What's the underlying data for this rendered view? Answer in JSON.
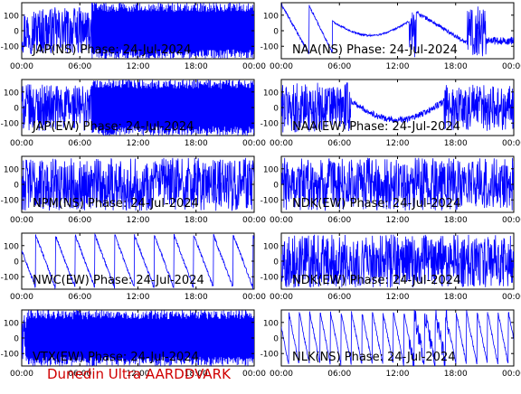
{
  "footer": "Dunedin Ultra AARDDVARK",
  "chart_data": [
    {
      "type": "line",
      "title": "JAP(NS) Phase: 24-Jul-2024",
      "pattern": "dense_high",
      "x_ticks": [
        "00:00",
        "06:00",
        "12:00",
        "18:00",
        "00:00"
      ],
      "y_ticks": [
        "100",
        "0",
        "-100"
      ],
      "ylim": [
        -180,
        180
      ],
      "grid": false,
      "series_color": "#0000ff"
    },
    {
      "type": "line",
      "title": "NAA(NS) Phase: 24-Jul-2024",
      "pattern": "naa_ns",
      "x_ticks": [
        "00:00",
        "06:00",
        "12:00",
        "18:00",
        "00:00"
      ],
      "y_ticks": [
        "100",
        "0",
        "-100"
      ],
      "ylim": [
        -180,
        180
      ],
      "grid": false,
      "series_color": "#0000ff"
    },
    {
      "type": "line",
      "title": "JAP(EW) Phase: 24-Jul-2024",
      "pattern": "dense_high",
      "x_ticks": [
        "00:00",
        "06:00",
        "12:00",
        "18:00",
        "00:00"
      ],
      "y_ticks": [
        "100",
        "0",
        "-100"
      ],
      "ylim": [
        -180,
        180
      ],
      "grid": false,
      "series_color": "#0000ff"
    },
    {
      "type": "line",
      "title": "NAA(EW) Phase: 24-Jul-2024",
      "pattern": "naa_ew",
      "x_ticks": [
        "00:00",
        "06:00",
        "12:00",
        "18:00",
        "00:00"
      ],
      "y_ticks": [
        "100",
        "0",
        "-100"
      ],
      "ylim": [
        -180,
        180
      ],
      "grid": false,
      "series_color": "#0000ff"
    },
    {
      "type": "line",
      "title": "NPM(NS) Phase: 24-Jul-2024",
      "pattern": "noise",
      "x_ticks": [
        "00:00",
        "06:00",
        "12:00",
        "18:00",
        "00:00"
      ],
      "y_ticks": [
        "100",
        "0",
        "-100"
      ],
      "ylim": [
        -180,
        180
      ],
      "grid": false,
      "series_color": "#0000ff"
    },
    {
      "type": "line",
      "title": "NDK(EW) Phase: 24-Jul-2024",
      "pattern": "noise",
      "x_ticks": [
        "00:00",
        "06:00",
        "12:00",
        "18:00",
        "00:00"
      ],
      "y_ticks": [
        "100",
        "0",
        "-100"
      ],
      "ylim": [
        -180,
        180
      ],
      "grid": false,
      "series_color": "#0000ff"
    },
    {
      "type": "line",
      "title": "NWC(EW) Phase: 24-Jul-2024",
      "pattern": "sawtooth_down",
      "x_ticks": [
        "00:00",
        "06:00",
        "12:00",
        "18:00",
        "00:00"
      ],
      "y_ticks": [
        "100",
        "0",
        "-100"
      ],
      "ylim": [
        -180,
        180
      ],
      "grid": false,
      "series_color": "#0000ff"
    },
    {
      "type": "line",
      "title": "NDK(EW) Phase: 24-Jul-2024",
      "pattern": "noise",
      "x_ticks": [
        "00:00",
        "06:00",
        "12:00",
        "18:00",
        "00:00"
      ],
      "y_ticks": [
        "100",
        "0",
        "-100"
      ],
      "ylim": [
        -180,
        180
      ],
      "grid": false,
      "series_color": "#0000ff"
    },
    {
      "type": "line",
      "title": "VTX(EW) Phase: 24-Jul-2024",
      "pattern": "dense_full",
      "x_ticks": [
        "00:00",
        "06:00",
        "12:00",
        "18:00",
        "00:00"
      ],
      "y_ticks": [
        "100",
        "0",
        "-100"
      ],
      "ylim": [
        -180,
        180
      ],
      "grid": false,
      "series_color": "#0000ff"
    },
    {
      "type": "line",
      "title": "NLK(NS) Phase: 24-Jul-2024",
      "pattern": "sawtooth_fast",
      "x_ticks": [
        "00:00",
        "06:00",
        "12:00",
        "18:00",
        "00:00"
      ],
      "y_ticks": [
        "100",
        "0",
        "-100"
      ],
      "ylim": [
        -180,
        180
      ],
      "grid": false,
      "series_color": "#0000ff"
    }
  ]
}
